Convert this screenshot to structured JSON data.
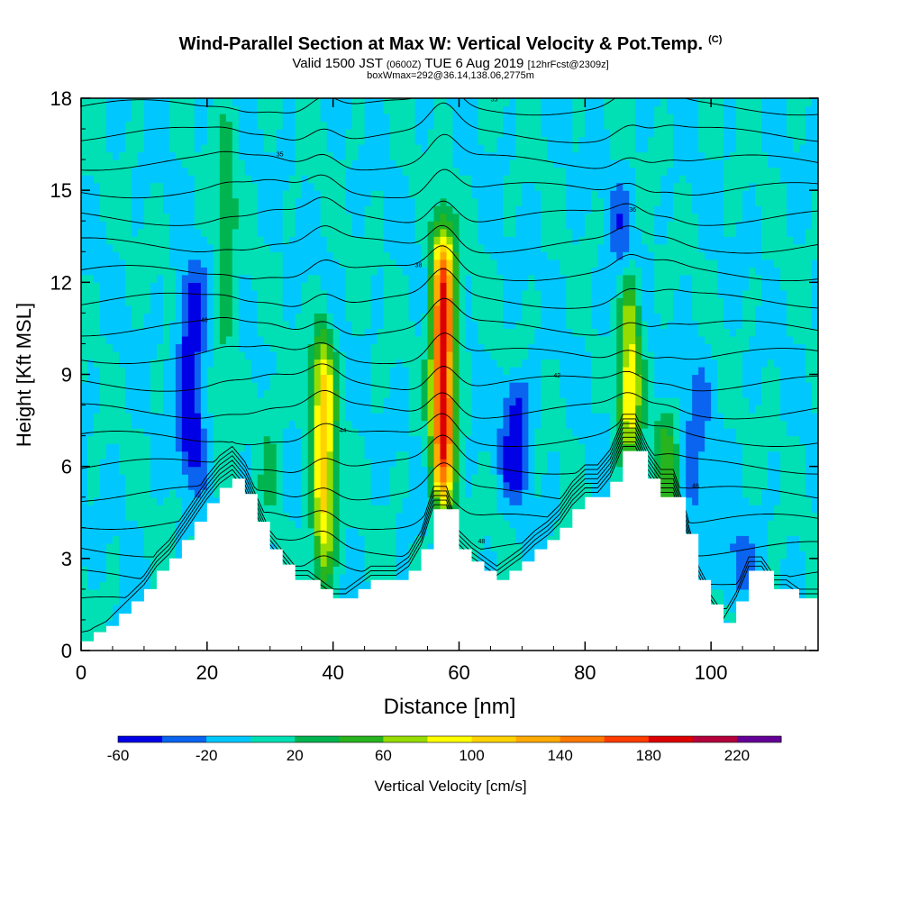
{
  "title": "Wind-Parallel Section at Max W: Vertical Velocity & Pot.Temp.",
  "copyright": "(C)",
  "subtitle_main": "Valid 1500 JST",
  "subtitle_utc": "(0600Z)",
  "subtitle_date": "TUE 6 Aug 2019",
  "subtitle_fcst": "[12hrFcst@2309z]",
  "subtitle2": "boxWmax=292@36.14,138.06,2775m",
  "chart_data": {
    "type": "heatmap",
    "title": "Wind-Parallel Section at Max W: Vertical Velocity & Pot.Temp.",
    "xlabel": "Distance [nm]",
    "ylabel": "Height [Kft MSL]",
    "xlim": [
      0,
      117
    ],
    "ylim": [
      0,
      18
    ],
    "x_ticks": [
      0,
      20,
      40,
      60,
      80,
      100
    ],
    "y_ticks": [
      0,
      3,
      6,
      9,
      12,
      15,
      18
    ],
    "colorbar": {
      "label": "Vertical Velocity [cm/s]",
      "tick_labels": [
        -60,
        -20,
        20,
        60,
        100,
        140,
        180,
        220
      ],
      "levels": [
        -60,
        -40,
        -20,
        0,
        20,
        40,
        60,
        80,
        100,
        120,
        140,
        160,
        180,
        200,
        220,
        240
      ],
      "colors": [
        "#0000e6",
        "#0a64f0",
        "#00c8ff",
        "#00e0b4",
        "#00b450",
        "#28b41e",
        "#96dc00",
        "#ffff00",
        "#ffd200",
        "#ffaa00",
        "#ff7800",
        "#ff3c00",
        "#dc0000",
        "#b4003c",
        "#640096"
      ]
    },
    "background_w": 0,
    "updrafts": [
      {
        "x": 38.5,
        "z_bottom": 2.3,
        "z_top": 10.5,
        "w_max": 110
      },
      {
        "x": 57.5,
        "z_bottom": 4.8,
        "z_top": 13.7,
        "w_max": 200
      },
      {
        "x": 87,
        "z_bottom": 6.2,
        "z_top": 12.5,
        "w_max": 100
      },
      {
        "x": 30,
        "z_bottom": 4.5,
        "z_top": 9,
        "w_max": 25
      },
      {
        "x": 23,
        "z_bottom": 8,
        "z_top": 18,
        "w_max": 28
      },
      {
        "x": 93,
        "z_bottom": 4,
        "z_top": 8,
        "w_max": 45
      }
    ],
    "downdrafts": [
      {
        "x": 17.5,
        "z_bottom": 5.5,
        "z_top": 12.5,
        "w_min": -60
      },
      {
        "x": 69,
        "z_bottom": 5,
        "z_top": 9,
        "w_min": -55
      },
      {
        "x": 86,
        "z_bottom": 9,
        "z_top": 15.5,
        "w_min": -30
      },
      {
        "x": 104,
        "z_bottom": 1.5,
        "z_top": 4,
        "w_min": -30
      },
      {
        "x": 97.5,
        "z_bottom": 3,
        "z_top": 10,
        "w_min": -25
      }
    ],
    "terrain": {
      "x": [
        0,
        2,
        4,
        6,
        8,
        10,
        12,
        14,
        16,
        18,
        20,
        22,
        24,
        26,
        28,
        30,
        32,
        34,
        36,
        38,
        40,
        42,
        44,
        46,
        48,
        50,
        52,
        54,
        56,
        58,
        60,
        62,
        64,
        66,
        68,
        70,
        72,
        74,
        76,
        78,
        80,
        82,
        84,
        86,
        88,
        90,
        92,
        94,
        96,
        98,
        100,
        102,
        104,
        106,
        108,
        110,
        112,
        114,
        117
      ],
      "height": [
        0.3,
        0.6,
        0.8,
        1.2,
        1.6,
        2.0,
        2.6,
        3.0,
        3.6,
        4.2,
        4.8,
        5.3,
        5.6,
        5.1,
        4.2,
        3.3,
        2.8,
        2.3,
        2.3,
        2.0,
        1.7,
        1.7,
        2.0,
        2.3,
        2.3,
        2.3,
        2.6,
        3.3,
        4.6,
        4.6,
        3.3,
        2.9,
        2.6,
        2.3,
        2.6,
        2.9,
        3.3,
        3.6,
        4.0,
        4.6,
        5.0,
        5.0,
        5.5,
        6.5,
        6.5,
        5.6,
        5.0,
        5.0,
        3.8,
        2.3,
        1.5,
        0.9,
        1.6,
        2.6,
        2.6,
        2.0,
        2.0,
        1.7,
        1.7
      ]
    },
    "isentrope_labels": [
      "50",
      "48",
      "46",
      "44",
      "42",
      "40",
      "38",
      "36",
      "35",
      "55"
    ]
  }
}
